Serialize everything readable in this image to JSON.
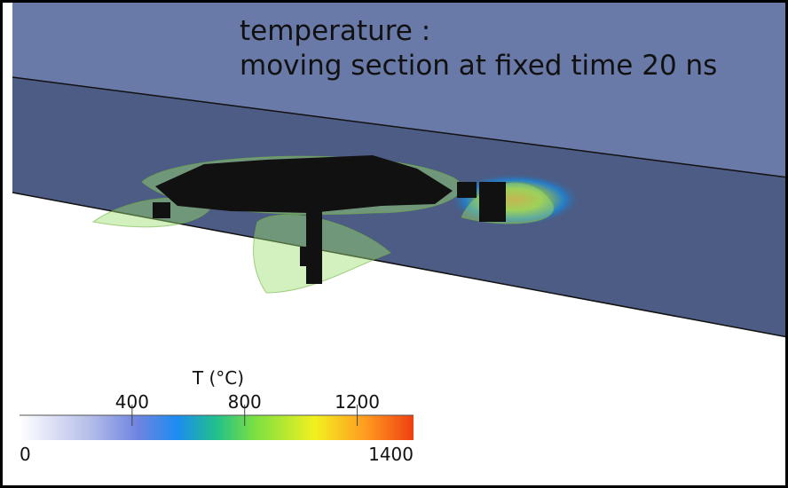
{
  "title": [
    "temperature :",
    "moving section at fixed time 20 ns"
  ],
  "colorbar": {
    "label": "T (°C)",
    "range": [
      0,
      1400
    ],
    "ticks": [
      400,
      800,
      1200
    ]
  }
}
